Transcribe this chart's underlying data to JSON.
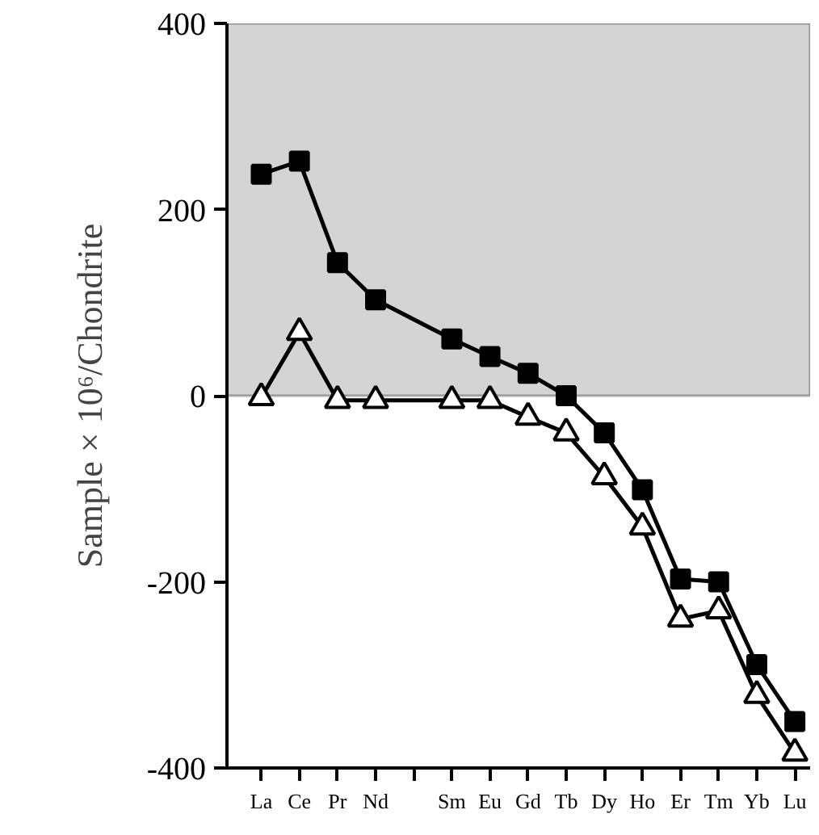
{
  "chart_data": {
    "type": "line",
    "ylabel": "Sample × 10⁶/Chondrite",
    "categories": [
      "La",
      "Ce",
      "Pr",
      "Nd",
      null,
      "Sm",
      "Eu",
      "Gd",
      "Tb",
      "Dy",
      "Ho",
      "Er",
      "Tm",
      "Yb",
      "Lu"
    ],
    "series": [
      {
        "color": "#000000",
        "marker": "square",
        "values": [
          238,
          252,
          143,
          103,
          null,
          61,
          42,
          24,
          0,
          -40,
          -101,
          -197,
          -200,
          -289,
          -350
        ]
      },
      {
        "color": "#000000",
        "marker": "triangle",
        "values": [
          -2,
          68,
          -5,
          -5,
          null,
          -5,
          -5,
          -23,
          -40,
          -87,
          -141,
          -240,
          -231,
          -322,
          -384
        ]
      }
    ],
    "ylim": [
      -400,
      400
    ],
    "yticks": [
      -400,
      -200,
      0,
      200,
      400
    ],
    "bands": [
      {
        "axis": "y",
        "from": 0,
        "to": 400,
        "color": "#d4d4d4"
      }
    ],
    "grid": false
  }
}
